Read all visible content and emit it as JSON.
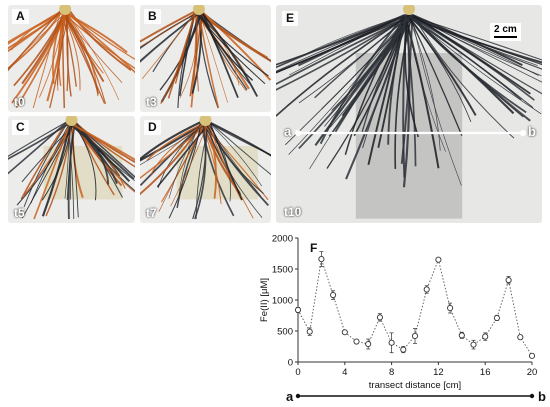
{
  "panels": [
    {
      "label": "A",
      "time": "t0"
    },
    {
      "label": "B",
      "time": "t3"
    },
    {
      "label": "C",
      "time": "t5"
    },
    {
      "label": "D",
      "time": "t7"
    },
    {
      "label": "E",
      "time": "t10"
    }
  ],
  "scale_bar": "2 cm",
  "transect": {
    "start": "a",
    "end": "b"
  },
  "chart_data": {
    "type": "scatter",
    "panel_label": "F",
    "xlabel": "transect distance [cm]",
    "ylabel": "Fe(II) [μM]",
    "xlim": [
      0,
      20
    ],
    "ylim": [
      0,
      2000
    ],
    "xticks": [
      "0",
      "4",
      "8",
      "12",
      "16",
      "20"
    ],
    "yticks": [
      "0",
      "500",
      "1000",
      "1500",
      "2000"
    ],
    "line_style": "dotted",
    "x": [
      0,
      1,
      2,
      3,
      4,
      5,
      6,
      7,
      8,
      9,
      10,
      11,
      12,
      13,
      14,
      15,
      16,
      17,
      18,
      19,
      20
    ],
    "y": [
      840,
      490,
      1660,
      1080,
      480,
      330,
      290,
      720,
      310,
      200,
      420,
      1170,
      1650,
      870,
      430,
      280,
      410,
      710,
      1320,
      400,
      100
    ],
    "error": [
      40,
      60,
      120,
      70,
      30,
      25,
      80,
      60,
      160,
      50,
      120,
      60,
      30,
      80,
      50,
      70,
      60,
      40,
      60,
      30,
      30
    ],
    "axis_start_label": "a",
    "axis_end_label": "b"
  }
}
